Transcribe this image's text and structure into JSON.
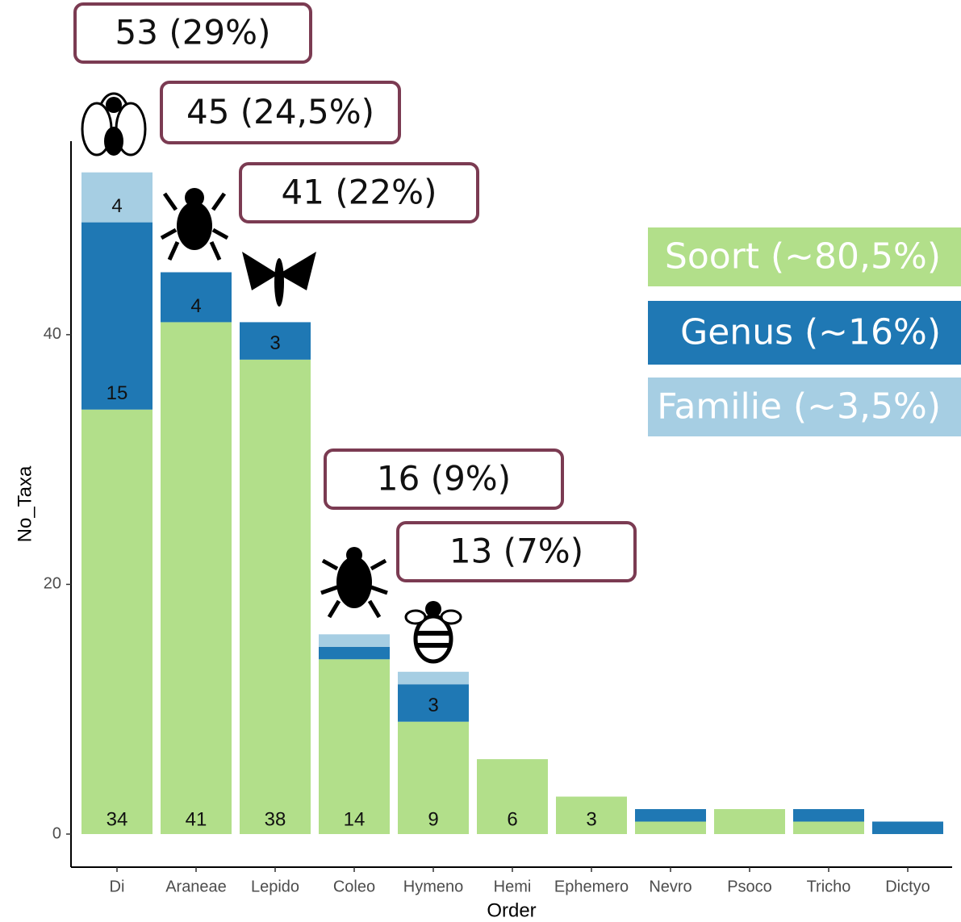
{
  "chart_data": {
    "type": "stacked-bar",
    "x_label": "Order",
    "y_label": "No_Taxa",
    "categories": [
      "Di",
      "Araneae",
      "Lepido",
      "Coleo",
      "Hymeno",
      "Hemi",
      "Ephemero",
      "Nevro",
      "Psoco",
      "Tricho",
      "Dictyo"
    ],
    "series": [
      {
        "name": "Soort (~80,5%)",
        "color": "#b2df8a",
        "values": [
          34,
          41,
          38,
          14,
          9,
          6,
          3,
          1,
          2,
          1,
          0
        ],
        "value_labels": [
          34,
          41,
          38,
          14,
          9,
          6,
          3,
          null,
          null,
          null,
          null
        ]
      },
      {
        "name": "Genus (~16%)",
        "color": "#1f78b4",
        "values": [
          15,
          4,
          3,
          1,
          3,
          0,
          0,
          1,
          0,
          1,
          1
        ],
        "value_labels": [
          15,
          4,
          3,
          null,
          3,
          null,
          null,
          null,
          null,
          null,
          null
        ]
      },
      {
        "name": "Familie (~3,5%)",
        "color": "#a6cee3",
        "values": [
          4,
          0,
          0,
          1,
          1,
          0,
          0,
          0,
          0,
          0,
          0
        ],
        "value_labels": [
          4,
          null,
          null,
          null,
          null,
          null,
          null,
          null,
          null,
          null,
          null
        ]
      }
    ],
    "annotations": [
      "53 (29%)",
      "45 (24,5%)",
      "41 (22%)",
      "16 (9%)",
      "13 (7%)"
    ],
    "annotation_border": "#7b3b52",
    "ylim": [
      -2.65,
      55.5
    ],
    "yticks": [
      0,
      20,
      40
    ]
  }
}
